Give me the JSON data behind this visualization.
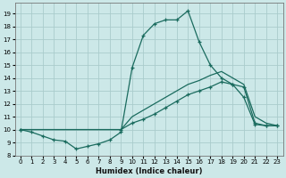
{
  "xlabel": "Humidex (Indice chaleur)",
  "background_color": "#cce8e8",
  "grid_color": "#aacccc",
  "line_color": "#1a6b5e",
  "xlim": [
    -0.5,
    23.5
  ],
  "ylim": [
    8.0,
    19.8
  ],
  "xticks": [
    0,
    1,
    2,
    3,
    4,
    5,
    6,
    7,
    8,
    9,
    10,
    11,
    12,
    13,
    14,
    15,
    16,
    17,
    18,
    19,
    20,
    21,
    22,
    23
  ],
  "yticks": [
    8,
    9,
    10,
    11,
    12,
    13,
    14,
    15,
    16,
    17,
    18,
    19
  ],
  "line1_x": [
    0,
    1,
    2,
    3,
    4,
    5,
    6,
    7,
    8,
    9,
    10,
    11,
    12,
    13,
    14,
    15,
    16,
    17,
    18,
    19,
    20,
    21,
    22,
    23
  ],
  "line1_y": [
    10.0,
    9.8,
    9.5,
    9.2,
    9.1,
    8.5,
    8.7,
    8.9,
    9.2,
    9.8,
    14.8,
    17.3,
    18.2,
    18.5,
    18.5,
    19.2,
    16.8,
    15.0,
    14.0,
    13.5,
    12.5,
    10.4,
    10.3,
    10.3
  ],
  "line2_x": [
    0,
    9,
    10,
    11,
    12,
    13,
    14,
    15,
    16,
    17,
    18,
    19,
    20,
    21,
    22,
    23
  ],
  "line2_y": [
    10.0,
    10.0,
    10.5,
    10.8,
    11.2,
    11.7,
    12.2,
    12.7,
    13.0,
    13.3,
    13.7,
    13.5,
    13.3,
    10.5,
    10.3,
    10.3
  ],
  "line3_x": [
    0,
    9,
    10,
    11,
    12,
    13,
    14,
    15,
    16,
    17,
    18,
    19,
    20,
    21,
    22,
    23
  ],
  "line3_y": [
    10.0,
    10.0,
    11.0,
    11.5,
    12.0,
    12.5,
    13.0,
    13.5,
    13.8,
    14.2,
    14.5,
    14.0,
    13.5,
    11.0,
    10.5,
    10.3
  ]
}
